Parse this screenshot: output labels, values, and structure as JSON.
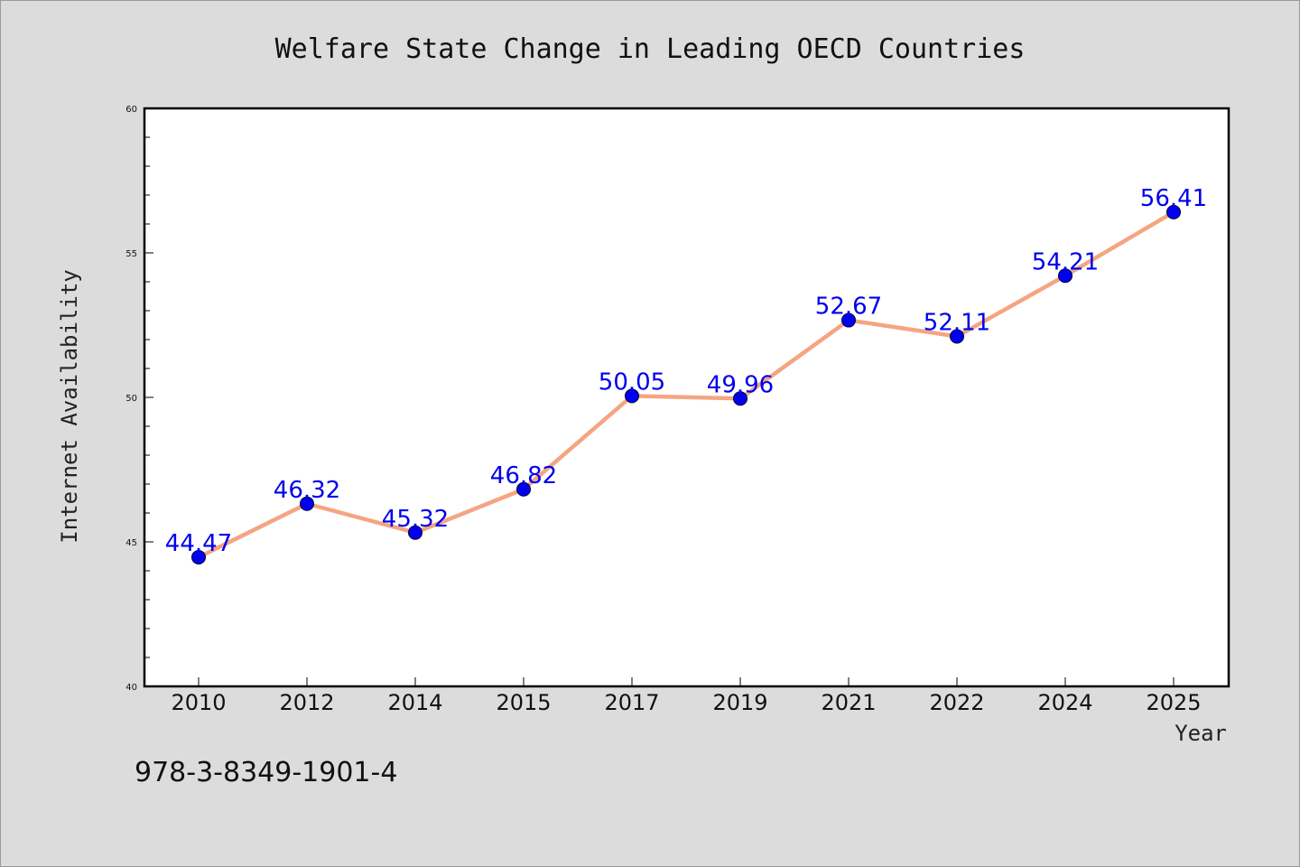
{
  "chart_data": {
    "type": "line",
    "title": "Welfare State Change in Leading OECD Countries",
    "xlabel": "Year",
    "ylabel": "Internet Availability",
    "categories": [
      "2010",
      "2012",
      "2014",
      "2015",
      "2017",
      "2019",
      "2021",
      "2022",
      "2024",
      "2025"
    ],
    "values": [
      44.47,
      46.32,
      45.32,
      46.82,
      50.05,
      49.96,
      52.67,
      52.11,
      54.21,
      56.41
    ],
    "value_labels": [
      "44.47",
      "46.32",
      "45.32",
      "46.82",
      "50.05",
      "49.96",
      "52.67",
      "52.11",
      "54.21",
      "56.41"
    ],
    "ylim": [
      40,
      60
    ],
    "yticks": [
      "40",
      "45",
      "50",
      "55",
      "60"
    ],
    "grid": false,
    "legend": "none",
    "colors": {
      "line": "#f4a582",
      "marker": "#0000ee",
      "data_label": "#0000ee",
      "background": "#dcdcdc",
      "plot_background": "#ffffff"
    }
  },
  "footer": {
    "isbn": "978-3-8349-1901-4"
  }
}
